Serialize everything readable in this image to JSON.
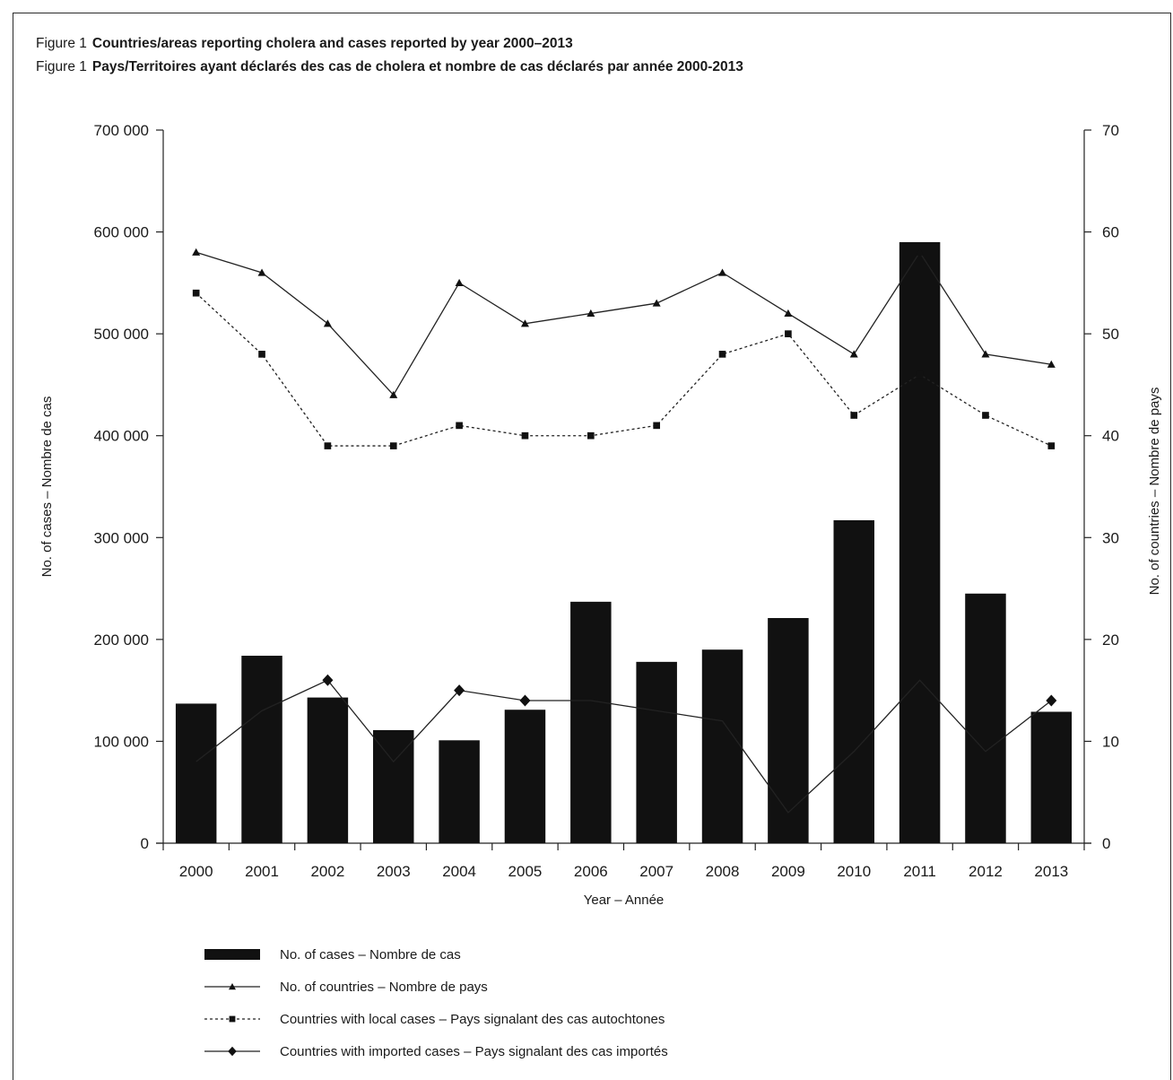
{
  "figure": {
    "en_label": "Figure 1",
    "en_title": "Countries/areas reporting cholera and cases reported by year 2000–2013",
    "fr_label": "Figure 1",
    "fr_title": "Pays/Territoires ayant déclarés des cas de cholera et nombre de cas déclarés par année 2000-2013"
  },
  "chart_data": {
    "type": "bar",
    "xlabel": "Year – Année",
    "ylabel_left": "No. of cases – Nombre de cas",
    "ylabel_right": "No. of countries – Nombre de pays",
    "ylim_left": [
      0,
      700000
    ],
    "ylim_right": [
      0,
      70
    ],
    "yticks_left": [
      "0",
      "100 000",
      "200 000",
      "300 000",
      "400 000",
      "500 000",
      "600 000",
      "700 000"
    ],
    "yticks_right": [
      "0",
      "10",
      "20",
      "30",
      "40",
      "50",
      "60",
      "70"
    ],
    "grid": false,
    "legend_position": "bottom",
    "categories": [
      "2000",
      "2001",
      "2002",
      "2003",
      "2004",
      "2005",
      "2006",
      "2007",
      "2008",
      "2009",
      "2010",
      "2011",
      "2012",
      "2013"
    ],
    "series": [
      {
        "name": "No. of cases – Nombre de cas",
        "type": "bar",
        "axis": "left",
        "color": "#111111",
        "values": [
          137000,
          184000,
          143000,
          111000,
          101000,
          131000,
          237000,
          178000,
          190000,
          221000,
          317000,
          590000,
          245000,
          129000
        ]
      },
      {
        "name": "No. of countries – Nombre de pays",
        "type": "line",
        "axis": "right",
        "marker": "triangle",
        "dash": "solid",
        "color": "#222222",
        "values": [
          58,
          56,
          51,
          44,
          55,
          51,
          52,
          53,
          56,
          52,
          48,
          58,
          48,
          47
        ]
      },
      {
        "name": "Countries with local cases – Pays signalant des cas autochtones",
        "type": "line",
        "axis": "right",
        "marker": "square",
        "dash": "dashed",
        "color": "#222222",
        "values": [
          54,
          48,
          39,
          39,
          41,
          40,
          40,
          41,
          48,
          50,
          42,
          46,
          42,
          39
        ]
      },
      {
        "name": "Countries with imported cases – Pays signalant des cas importés",
        "type": "line",
        "axis": "right",
        "marker": "diamond",
        "dash": "solid",
        "color": "#222222",
        "values": [
          8,
          13,
          16,
          8,
          15,
          14,
          14,
          13,
          12,
          3,
          9,
          16,
          9,
          14
        ]
      }
    ]
  }
}
